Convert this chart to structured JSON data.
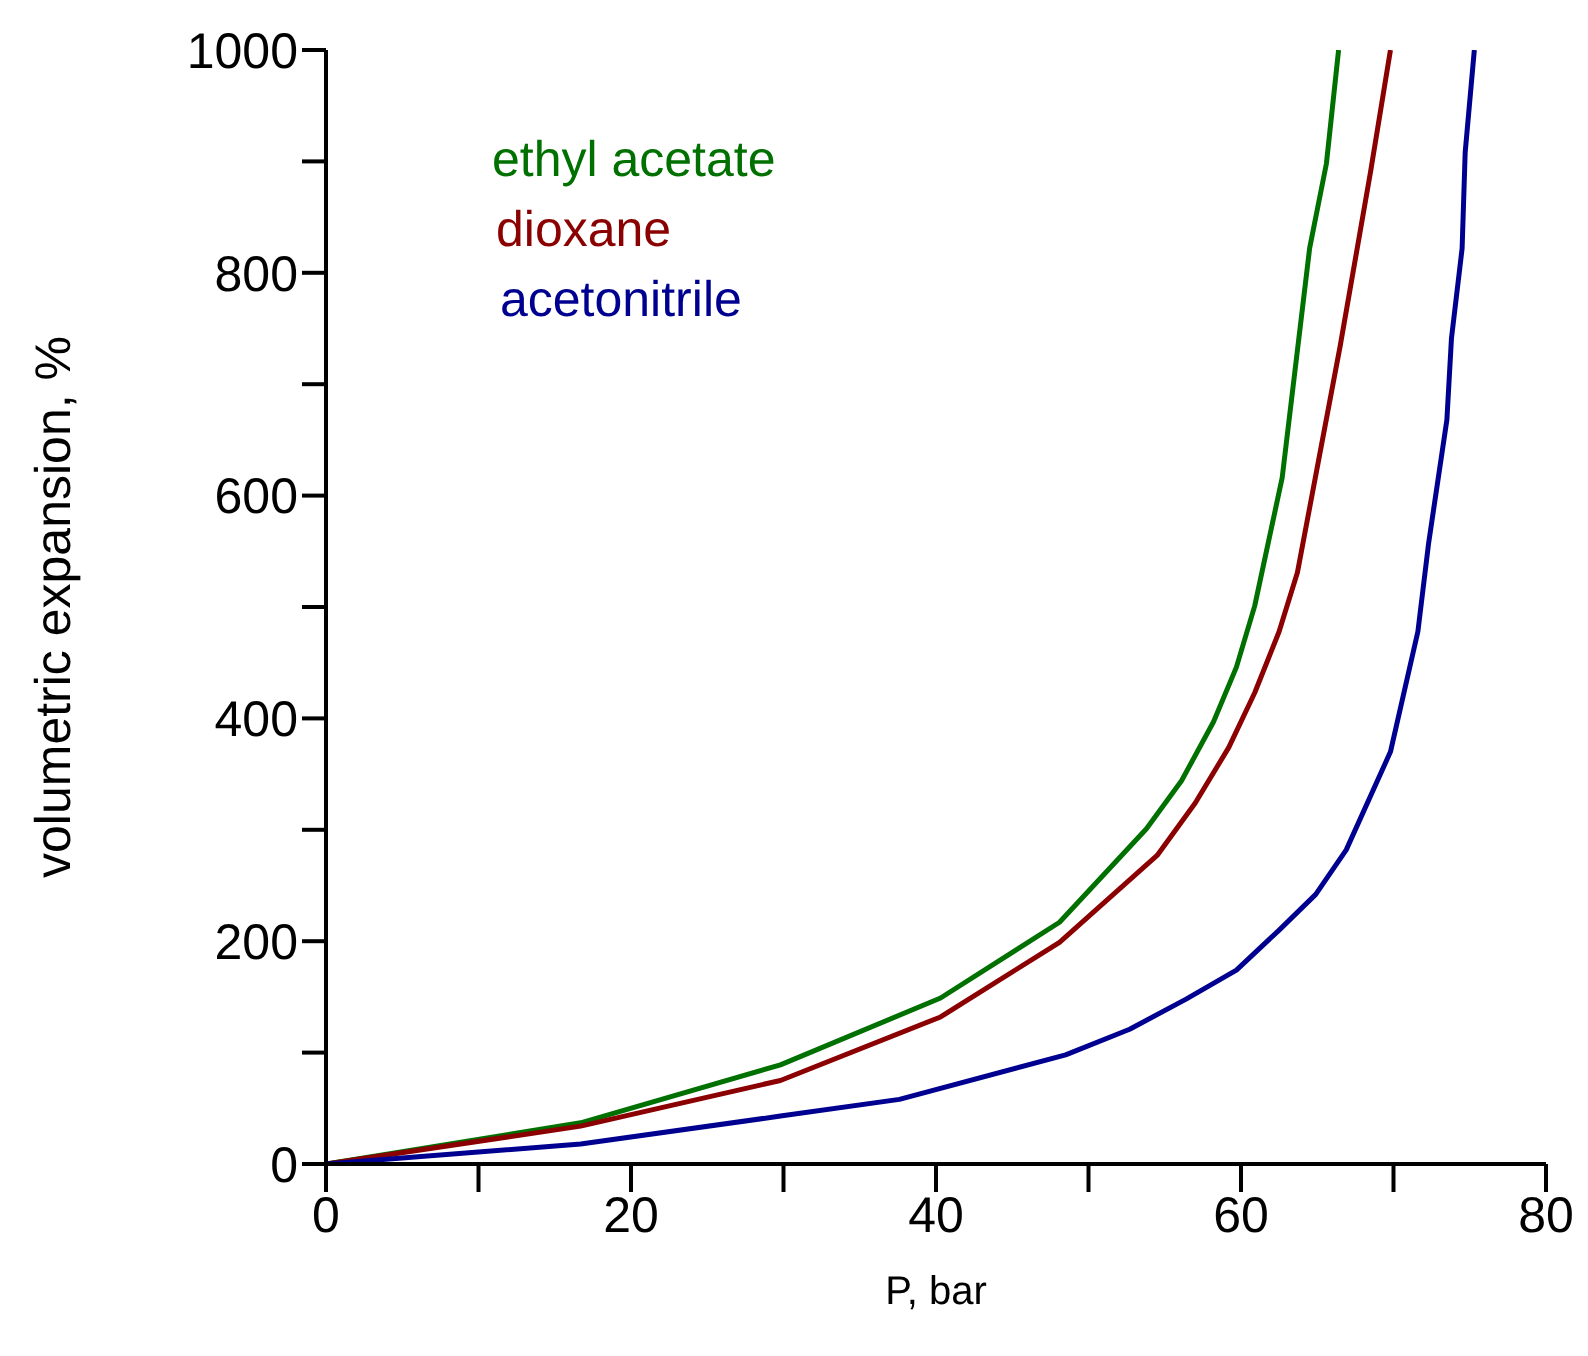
{
  "chart_data": {
    "type": "line",
    "xlabel": "P, bar",
    "ylabel": "volumetric expansion, %",
    "xlim": [
      0,
      80
    ],
    "xticks": [
      0,
      {
        "value": 10,
        "label": null
      },
      20,
      {
        "value": 30,
        "label": null
      },
      40,
      {
        "value": 50,
        "label": null
      },
      60,
      {
        "value": 70,
        "label": null
      },
      80
    ],
    "ylim": [
      0,
      1000
    ],
    "yticks": [
      0,
      {
        "value": 100,
        "label": null
      },
      200,
      {
        "value": 300,
        "label": null
      },
      400,
      {
        "value": 500,
        "label": null
      },
      600,
      {
        "value": 700,
        "label": null
      },
      800,
      {
        "value": 900,
        "label": null
      },
      1000
    ],
    "grid": false,
    "legend": "top left",
    "marker": "none",
    "line_style": "solid",
    "series": [
      {
        "name": "ethyl acetate",
        "color": "#007000",
        "x": [
          0,
          16.7,
          29.8,
          40.3,
          48.1,
          53.8,
          56.1,
          58.2,
          59.7,
          60.9,
          62.7,
          64.5,
          65.6,
          66.4
        ],
        "values": [
          0,
          37,
          89,
          149,
          217,
          301,
          344,
          397,
          446,
          501,
          616,
          822,
          898,
          1000
        ]
      },
      {
        "name": "dioxane",
        "color": "#8b0000",
        "x": [
          0,
          16.7,
          29.8,
          40.3,
          48.1,
          54.5,
          57,
          59.2,
          60.9,
          62.5,
          63.7,
          66.5,
          68.5,
          69.8
        ],
        "values": [
          0,
          34,
          75,
          132,
          199,
          277,
          324,
          374,
          423,
          478,
          531,
          734,
          891,
          1000
        ]
      },
      {
        "name": "acetonitrile",
        "color": "#000090",
        "x": [
          0,
          16.7,
          29.8,
          37.6,
          48.5,
          52.7,
          56.4,
          59.7,
          62.5,
          64.9,
          66.9,
          69.8,
          71.6,
          72.3,
          73.5,
          73.8,
          74.5,
          74.7,
          75.3
        ],
        "values": [
          0,
          18,
          43,
          58,
          98,
          121,
          148,
          174,
          210,
          242,
          282,
          370,
          478,
          557,
          668,
          741,
          822,
          908,
          1000
        ]
      }
    ]
  }
}
